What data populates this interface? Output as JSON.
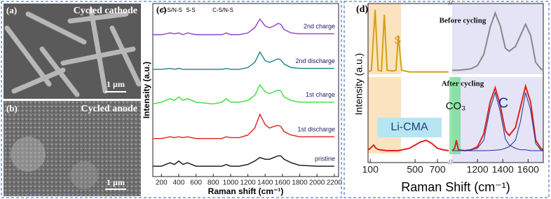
{
  "images": [
    {
      "label": "(a)",
      "caption": "Cycled cathode",
      "scale": "1 µm"
    },
    {
      "label": "(b)",
      "caption": "Cycled anode",
      "scale": "1 µm"
    }
  ],
  "chart_data": [
    {
      "type": "line",
      "label": "(c)",
      "x_label": "Raman shift (cm⁻¹)",
      "y_label": "Intensity (a.u.)",
      "annotations": [
        "C-S/N-S",
        "S-S",
        "C-S/N-S"
      ],
      "xlim": [
        100,
        2250
      ],
      "ylim": [
        0,
        100
      ],
      "xticks": [
        200,
        400,
        600,
        800,
        1000,
        1200,
        1400,
        1600,
        1800,
        2000,
        2200
      ],
      "x": [
        100,
        200,
        300,
        350,
        400,
        450,
        500,
        600,
        800,
        900,
        950,
        1000,
        1100,
        1200,
        1280,
        1340,
        1400,
        1450,
        1500,
        1550,
        1580,
        1620,
        1700,
        1800,
        2000,
        2200
      ],
      "series": [
        {
          "name": "2nd charge",
          "color": "#8e3fc9",
          "values": [
            82,
            82,
            83,
            82.5,
            83,
            82,
            83,
            82,
            82,
            82,
            83,
            82,
            82,
            83,
            86,
            91,
            87,
            86,
            87,
            88.5,
            88,
            85,
            83,
            82.5,
            82.5,
            82.5
          ]
        },
        {
          "name": "2nd discharge",
          "color": "#1f7f8a",
          "values": [
            62,
            62,
            62.5,
            62,
            62.5,
            62,
            62,
            62,
            62,
            62,
            62.5,
            62,
            62,
            63,
            66,
            72,
            67,
            66,
            67,
            68,
            67.5,
            65,
            63,
            62.5,
            62.5,
            62.5
          ]
        },
        {
          "name": "1st charge",
          "color": "#3ddc3d",
          "values": [
            42,
            43,
            45,
            44,
            46,
            44,
            45,
            43,
            42,
            43,
            45,
            43,
            43,
            44,
            47,
            53,
            49,
            48,
            49,
            50,
            49.5,
            46,
            44,
            43,
            43,
            43
          ]
        },
        {
          "name": "1st discharge",
          "color": "#e02020",
          "values": [
            22,
            22,
            23,
            22.5,
            23,
            22.5,
            23,
            22,
            22,
            22,
            23,
            22.5,
            22.5,
            24,
            28,
            36,
            30,
            28,
            29,
            29.5,
            29,
            26,
            24,
            23,
            23,
            23
          ]
        },
        {
          "name": "pristine",
          "color": "#111111",
          "values": [
            6,
            6,
            8,
            7,
            9,
            7,
            8,
            6,
            6,
            6,
            7,
            6,
            6,
            7,
            9,
            11,
            10,
            10,
            11,
            12,
            12,
            10,
            8,
            6.5,
            6,
            6
          ]
        }
      ]
    },
    {
      "type": "line",
      "label": "(d)",
      "x_label": "Raman Shift (cm⁻¹)",
      "y_label": "Intensity (a.u.)",
      "annotations": [
        "Before cycling",
        "After cycling",
        "S",
        "Li-CMA",
        "CO₃",
        "C"
      ],
      "xlim": [
        80,
        1720
      ],
      "x_break": [
        800,
        1000
      ],
      "ylim": [
        0,
        100
      ],
      "xticks": [
        100,
        500,
        700,
        1200,
        1400,
        1600
      ],
      "series": [
        {
          "color": "#d4a017",
          "x": [
            80,
            110,
            143,
            170,
            200,
            225,
            250,
            300,
            330,
            350,
            380,
            450,
            520,
            580,
            640,
            700,
            760,
            800
          ],
          "values": [
            57,
            58,
            96,
            58,
            57.5,
            93,
            58,
            57.5,
            58,
            80,
            58,
            57,
            57,
            57,
            57,
            57,
            57,
            57
          ]
        },
        {
          "color": "#888888",
          "x": [
            1000,
            1050,
            1100,
            1150,
            1200,
            1250,
            1300,
            1340,
            1380,
            1420,
            1450,
            1500,
            1540,
            1580,
            1620,
            1660,
            1700,
            1720
          ],
          "values": [
            58,
            58,
            58.5,
            59,
            61,
            68,
            85,
            94,
            86,
            72,
            70,
            73,
            80,
            87,
            80,
            63,
            59,
            58
          ]
        },
        {
          "color": "#e02020",
          "x": [
            80,
            100,
            130,
            150,
            180,
            250,
            350,
            450,
            500,
            550,
            600,
            650,
            700,
            750,
            800
          ],
          "values": [
            8,
            9,
            11,
            9,
            8,
            7.5,
            7.5,
            9,
            11,
            13,
            14,
            12,
            9,
            8,
            7.5
          ]
        },
        {
          "color": "#e02020",
          "x": [
            1000,
            1020,
            1033,
            1050,
            1100,
            1150,
            1200,
            1250,
            1300,
            1340,
            1380,
            1420,
            1450,
            1500,
            1540,
            1580,
            1620,
            1660,
            1700,
            1720
          ],
          "values": [
            7.5,
            9,
            14,
            8,
            7.5,
            8,
            10,
            18,
            38,
            47,
            36,
            20,
            17,
            22,
            35,
            48,
            38,
            14,
            9,
            8
          ]
        },
        {
          "color": "#1f2f8f",
          "x": [
            1000,
            1020,
            1033,
            1050,
            1100,
            1150,
            1200,
            1250,
            1300,
            1340,
            1380,
            1420,
            1450,
            1500,
            1540,
            1580,
            1620,
            1660,
            1700,
            1720
          ],
          "values": [
            7.5,
            7.5,
            7.5,
            7.5,
            7.6,
            8,
            9,
            14,
            34,
            44,
            32,
            15,
            11,
            9,
            8,
            8,
            7.5,
            7.5,
            7.5,
            7.5
          ]
        },
        {
          "color": "#1f2f8f",
          "x": [
            1000,
            1020,
            1033,
            1050,
            1100,
            1150,
            1200,
            1250,
            1300,
            1340,
            1380,
            1420,
            1450,
            1500,
            1540,
            1580,
            1620,
            1660,
            1700,
            1720
          ],
          "values": [
            7.5,
            7.5,
            7.5,
            7.5,
            7.5,
            7.5,
            7.5,
            7.5,
            7.6,
            7.8,
            8,
            9,
            10,
            14,
            26,
            44,
            33,
            12,
            8,
            7.5
          ]
        }
      ]
    }
  ]
}
